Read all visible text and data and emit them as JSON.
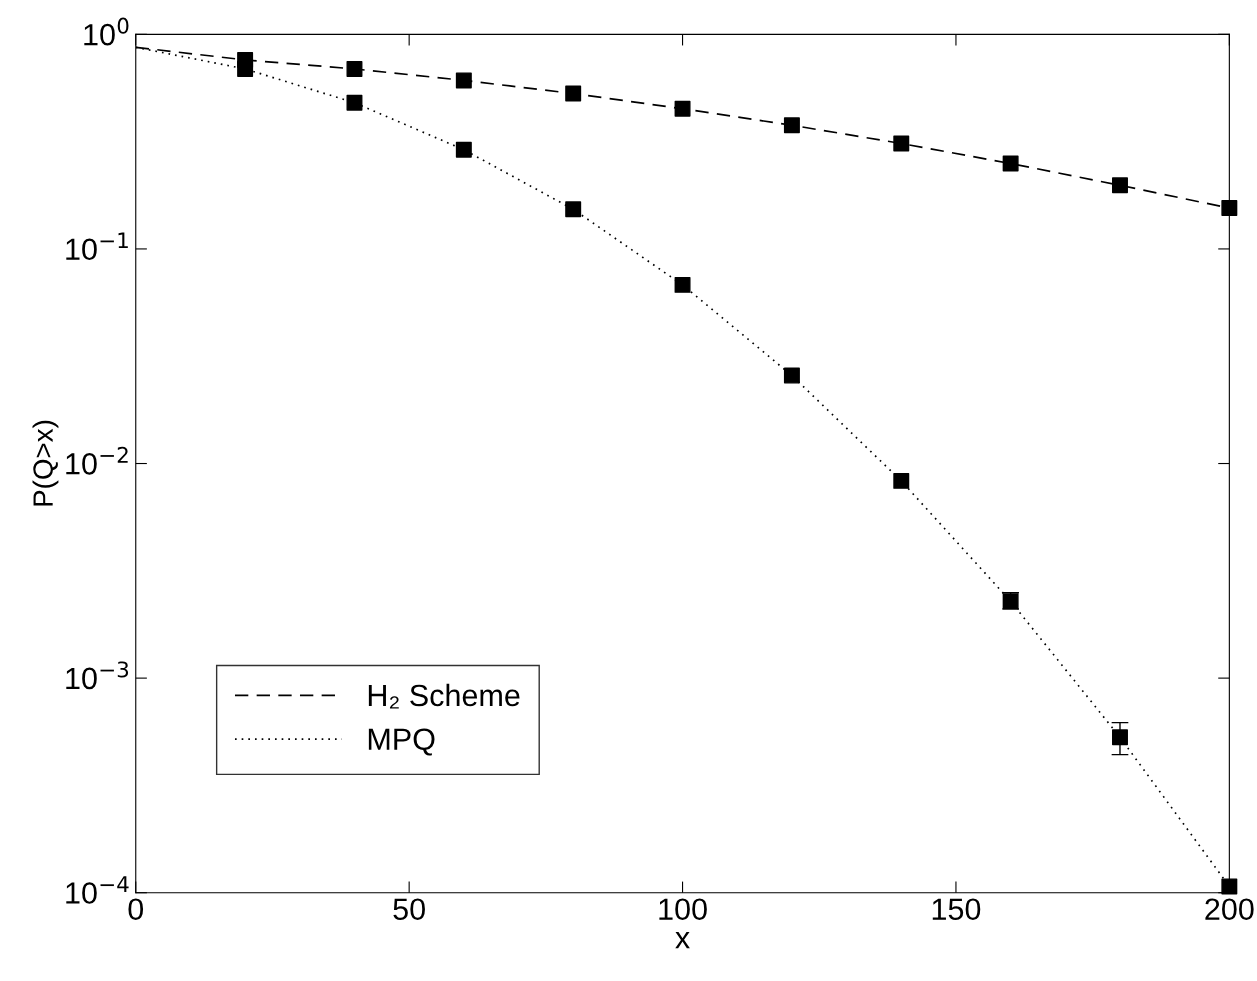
{
  "chart_data": {
    "type": "line",
    "xlabel": "x",
    "ylabel": "P(Q>x)",
    "log": "y",
    "xlim": [
      0,
      200
    ],
    "xticks": [
      0,
      50,
      100,
      150,
      200
    ],
    "ylim": [
      0.0001,
      1
    ],
    "yticks": [
      {
        "value": 0.0001,
        "label": "10$^{−4}$"
      },
      {
        "value": 0.001,
        "label": "10$^{−3}$"
      },
      {
        "value": 0.01,
        "label": "10$^{−2}$"
      },
      {
        "value": 0.1,
        "label": "10$^{−1}$"
      },
      {
        "value": 1,
        "label": "10$^{0}$"
      }
    ],
    "grid": false,
    "legend": "bottom left",
    "series": [
      {
        "name": "H₂ Scheme",
        "line_style": "dashed",
        "marker": "none",
        "color": "#000000",
        "x": [
          0,
          20,
          40,
          60,
          80,
          100,
          120,
          140,
          160,
          180,
          200
        ],
        "values": [
          0.87,
          0.76,
          0.69,
          0.61,
          0.53,
          0.45,
          0.377,
          0.31,
          0.25,
          0.198,
          0.155
        ]
      },
      {
        "name": "MPQ",
        "line_style": "dotted",
        "marker": "none",
        "color": "#000000",
        "x": [
          0,
          20,
          40,
          60,
          80,
          100,
          120,
          140,
          160,
          180,
          200
        ],
        "values": [
          0.87,
          0.69,
          0.48,
          0.29,
          0.153,
          0.068,
          0.0257,
          0.0083,
          0.00228,
          0.00053,
          0.000107
        ]
      },
      {
        "type": "scatter",
        "marker": "square",
        "color": "#000000",
        "x": [
          20,
          40,
          60,
          80,
          100,
          120,
          140,
          160,
          180,
          200
        ],
        "values": [
          0.76,
          0.69,
          0.61,
          0.53,
          0.45,
          0.377,
          0.31,
          0.25,
          0.198,
          0.155
        ],
        "errors": [
          null,
          null,
          null,
          null,
          null,
          null,
          null,
          null,
          null,
          null
        ]
      },
      {
        "type": "scatter",
        "marker": "square",
        "color": "#000000",
        "x": [
          20,
          40,
          60,
          80,
          100,
          120,
          140,
          160,
          180,
          200
        ],
        "values": [
          0.69,
          0.48,
          0.29,
          0.153,
          0.068,
          0.0257,
          0.0083,
          0.00228,
          0.00053,
          0.000107
        ],
        "errors": [
          null,
          null,
          null,
          null,
          null,
          null,
          null,
          [
            0.0021,
            0.0025
          ],
          [
            0.00044,
            0.00062
          ],
          null
        ]
      }
    ]
  }
}
